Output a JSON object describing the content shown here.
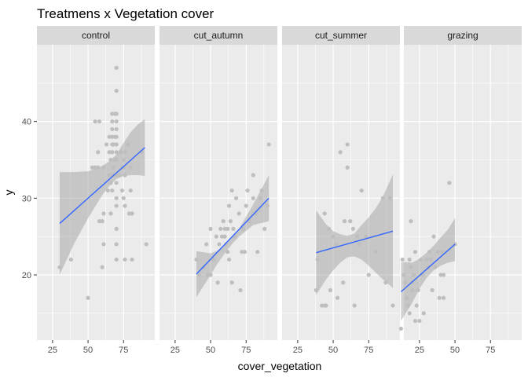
{
  "chart_data": {
    "type": "scatter",
    "title": "Treatmens x Vegetation cover",
    "xlabel": "cover_vegetation",
    "ylabel": "y",
    "xlim": [
      14,
      97
    ],
    "ylim": [
      11.5,
      50
    ],
    "x_ticks": [
      25,
      50,
      75
    ],
    "y_ticks": [
      20,
      30,
      40
    ],
    "grid": true,
    "facet_by": "treatment",
    "colors": {
      "points": "#bebebe",
      "fit_line": "#3366ff",
      "ribbon": "#999999",
      "panel_bg": "#ebebeb",
      "strip_bg": "#d9d9d9",
      "grid": "#ffffff"
    },
    "facets": [
      {
        "label": "control",
        "points": [
          [
            30,
            21
          ],
          [
            38,
            22
          ],
          [
            50,
            17
          ],
          [
            53,
            34
          ],
          [
            55,
            34
          ],
          [
            55,
            40
          ],
          [
            58,
            40
          ],
          [
            57,
            36
          ],
          [
            57,
            34
          ],
          [
            58,
            27
          ],
          [
            60,
            27
          ],
          [
            60,
            21
          ],
          [
            61,
            34
          ],
          [
            61,
            28
          ],
          [
            61,
            24
          ],
          [
            63,
            37
          ],
          [
            64,
            31
          ],
          [
            65,
            33
          ],
          [
            65,
            36
          ],
          [
            65,
            38
          ],
          [
            66,
            35
          ],
          [
            66,
            32
          ],
          [
            66,
            28
          ],
          [
            67,
            33
          ],
          [
            67,
            31
          ],
          [
            67,
            36
          ],
          [
            67,
            37
          ],
          [
            67,
            38
          ],
          [
            67,
            39
          ],
          [
            67,
            40
          ],
          [
            67,
            41
          ],
          [
            68,
            33
          ],
          [
            68,
            34
          ],
          [
            68,
            37
          ],
          [
            69,
            35
          ],
          [
            69,
            38
          ],
          [
            69,
            41
          ],
          [
            70,
            32
          ],
          [
            70,
            33
          ],
          [
            70,
            35
          ],
          [
            70,
            36
          ],
          [
            70,
            37
          ],
          [
            70,
            38
          ],
          [
            70,
            39
          ],
          [
            70,
            40
          ],
          [
            70,
            41
          ],
          [
            70,
            47
          ],
          [
            70,
            44
          ],
          [
            70,
            30
          ],
          [
            70,
            29
          ],
          [
            70,
            26
          ],
          [
            70,
            24
          ],
          [
            70,
            22
          ],
          [
            72,
            33
          ],
          [
            73,
            36
          ],
          [
            74,
            31
          ],
          [
            75,
            30
          ],
          [
            75,
            34
          ],
          [
            75,
            35
          ],
          [
            76,
            36
          ],
          [
            76,
            33
          ],
          [
            76,
            29
          ],
          [
            76,
            22
          ],
          [
            78,
            37
          ],
          [
            79,
            28
          ],
          [
            80,
            34
          ],
          [
            80,
            31
          ],
          [
            81,
            28
          ],
          [
            81,
            22
          ],
          [
            88,
            36
          ],
          [
            91,
            24
          ]
        ],
        "fit": {
          "x": [
            30,
            90
          ],
          "y": [
            26.7,
            36.6
          ]
        },
        "band": {
          "x": [
            30,
            40,
            50,
            60,
            65,
            70,
            75,
            80,
            85,
            90
          ],
          "lower": [
            20.0,
            24.0,
            27.4,
            30.4,
            31.6,
            32.5,
            32.9,
            33.0,
            33.0,
            32.9
          ],
          "upper": [
            33.4,
            33.4,
            33.5,
            34.2,
            34.8,
            35.7,
            37.2,
            38.6,
            39.6,
            40.3
          ]
        }
      },
      {
        "label": "cut_autumn",
        "points": [
          [
            40,
            22
          ],
          [
            42,
            20
          ],
          [
            45,
            21
          ],
          [
            47,
            24
          ],
          [
            48,
            20
          ],
          [
            50,
            20
          ],
          [
            50,
            26
          ],
          [
            52,
            22
          ],
          [
            54,
            25
          ],
          [
            55,
            19
          ],
          [
            56,
            24
          ],
          [
            57,
            26
          ],
          [
            58,
            25
          ],
          [
            59,
            27
          ],
          [
            60,
            25
          ],
          [
            60,
            26
          ],
          [
            61,
            24
          ],
          [
            62,
            26
          ],
          [
            62,
            23
          ],
          [
            63,
            29
          ],
          [
            63,
            22
          ],
          [
            64,
            27
          ],
          [
            65,
            19
          ],
          [
            65,
            31
          ],
          [
            66,
            26
          ],
          [
            67,
            25
          ],
          [
            68,
            30
          ],
          [
            70,
            28
          ],
          [
            71,
            18
          ],
          [
            72,
            23
          ],
          [
            73,
            26
          ],
          [
            74,
            23
          ],
          [
            75,
            29
          ],
          [
            76,
            31
          ],
          [
            77,
            27
          ],
          [
            80,
            30
          ],
          [
            80,
            33
          ],
          [
            82,
            28
          ],
          [
            83,
            23
          ],
          [
            85,
            30
          ],
          [
            86,
            31
          ],
          [
            88,
            26
          ],
          [
            90,
            29
          ],
          [
            91,
            37
          ]
        ],
        "fit": {
          "x": [
            40,
            91
          ],
          "y": [
            20.1,
            30.0
          ]
        },
        "band": {
          "x": [
            40,
            50,
            55,
            60,
            65,
            70,
            80,
            91
          ],
          "lower": [
            17.1,
            20.0,
            21.5,
            22.8,
            24.0,
            25.0,
            26.5,
            27.0
          ],
          "upper": [
            23.1,
            22.8,
            23.2,
            24.0,
            25.0,
            26.0,
            29.2,
            33.0
          ]
        }
      },
      {
        "label": "cut_summer",
        "points": [
          [
            38,
            18
          ],
          [
            39,
            22
          ],
          [
            42,
            16
          ],
          [
            44,
            16
          ],
          [
            44,
            28
          ],
          [
            45,
            16
          ],
          [
            47,
            26
          ],
          [
            48,
            18
          ],
          [
            50,
            25
          ],
          [
            52,
            24
          ],
          [
            53,
            17
          ],
          [
            55,
            36
          ],
          [
            57,
            19
          ],
          [
            58,
            27
          ],
          [
            60,
            37
          ],
          [
            60,
            34
          ],
          [
            62,
            27
          ],
          [
            64,
            26
          ],
          [
            65,
            16
          ],
          [
            67,
            25
          ],
          [
            68,
            24
          ],
          [
            70,
            31
          ],
          [
            73,
            25
          ],
          [
            75,
            20
          ],
          [
            80,
            23
          ],
          [
            85,
            30
          ],
          [
            87,
            19
          ],
          [
            90,
            30
          ],
          [
            92,
            16
          ]
        ],
        "fit": {
          "x": [
            38,
            92
          ],
          "y": [
            22.9,
            25.7
          ]
        },
        "band": {
          "x": [
            38,
            45,
            50,
            55,
            60,
            65,
            70,
            75,
            80,
            85,
            92
          ],
          "lower": [
            17.4,
            19.4,
            20.6,
            21.6,
            22.3,
            22.4,
            22.0,
            21.2,
            20.3,
            19.4,
            18.3
          ],
          "upper": [
            28.4,
            26.6,
            25.7,
            25.3,
            25.1,
            25.4,
            26.5,
            27.5,
            28.7,
            30.2,
            33.1
          ]
        }
      },
      {
        "label": "grazing",
        "points": [
          [
            12,
            13
          ],
          [
            13,
            22
          ],
          [
            14,
            20
          ],
          [
            15,
            19
          ],
          [
            16,
            17
          ],
          [
            17,
            16
          ],
          [
            18,
            15
          ],
          [
            18,
            22
          ],
          [
            19,
            21
          ],
          [
            19,
            27
          ],
          [
            20,
            19
          ],
          [
            20,
            18
          ],
          [
            21,
            20
          ],
          [
            22,
            14
          ],
          [
            22,
            23
          ],
          [
            23,
            16
          ],
          [
            24,
            18
          ],
          [
            25,
            14
          ],
          [
            26,
            22
          ],
          [
            27,
            20
          ],
          [
            28,
            15
          ],
          [
            30,
            22
          ],
          [
            31,
            21
          ],
          [
            32,
            23
          ],
          [
            33,
            22
          ],
          [
            34,
            18
          ],
          [
            35,
            25
          ],
          [
            36,
            21
          ],
          [
            38,
            23
          ],
          [
            39,
            17
          ],
          [
            40,
            20
          ],
          [
            41,
            23
          ],
          [
            42,
            20
          ],
          [
            42,
            17
          ],
          [
            46,
            32
          ],
          [
            50,
            24
          ]
        ],
        "fit": {
          "x": [
            12,
            50
          ],
          "y": [
            17.8,
            24.0
          ]
        },
        "band": {
          "x": [
            12,
            20,
            25,
            30,
            35,
            40,
            45,
            50
          ],
          "lower": [
            14.0,
            16.4,
            18.2,
            19.6,
            20.6,
            21.2,
            21.6,
            21.8
          ],
          "upper": [
            21.7,
            21.6,
            22.1,
            22.9,
            23.8,
            24.9,
            25.9,
            27.4
          ]
        }
      }
    ]
  }
}
